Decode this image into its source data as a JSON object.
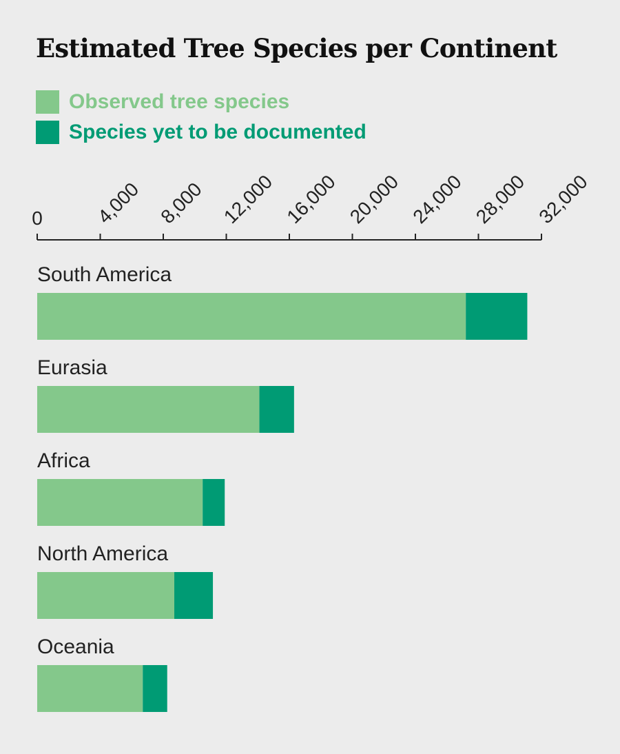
{
  "chart_data": {
    "type": "bar",
    "stacked": true,
    "orientation": "horizontal",
    "title": "Estimated Tree Species per Continent",
    "categories": [
      "South America",
      "Eurasia",
      "Africa",
      "North America",
      "Oceania"
    ],
    "series": [
      {
        "name": "Observed tree species",
        "color": "#84c88b",
        "values": [
          27200,
          14100,
          10500,
          8700,
          6700
        ]
      },
      {
        "name": "Species yet to be documented",
        "color": "#009b74",
        "values": [
          3900,
          2200,
          1400,
          2450,
          1550
        ]
      }
    ],
    "xlim": [
      0,
      32000
    ],
    "x_ticks": [
      "0",
      "4,000",
      "8,000",
      "12,000",
      "16,000",
      "20,000",
      "24,000",
      "28,000",
      "32,000"
    ],
    "x_tick_values": [
      0,
      4000,
      8000,
      12000,
      16000,
      20000,
      24000,
      28000,
      32000
    ],
    "xlabel": "",
    "ylabel": "",
    "grid": false,
    "legend_position": "top-left"
  }
}
